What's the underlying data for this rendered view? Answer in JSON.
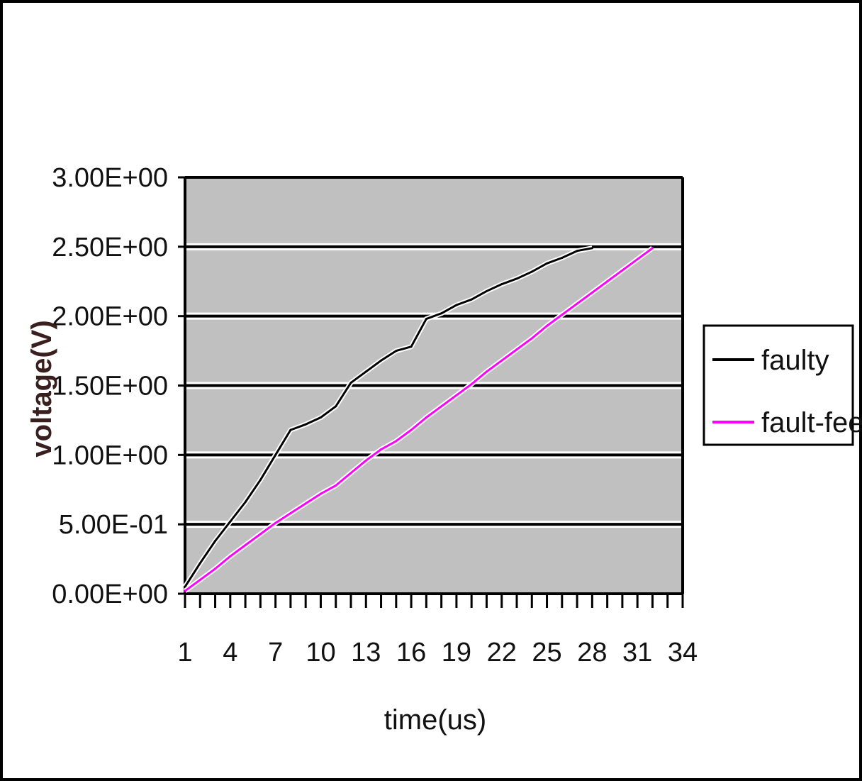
{
  "chart_data": {
    "type": "line",
    "title": "",
    "xlabel": "time(us)",
    "ylabel": "voltage(V)",
    "x": [
      1,
      2,
      3,
      4,
      5,
      6,
      7,
      8,
      9,
      10,
      11,
      12,
      13,
      14,
      15,
      16,
      17,
      18,
      19,
      20,
      21,
      22,
      23,
      24,
      25,
      26,
      27,
      28,
      29,
      30,
      31,
      32
    ],
    "x_ticks": [
      "1",
      "4",
      "7",
      "10",
      "13",
      "16",
      "19",
      "22",
      "25",
      "28",
      "31",
      "34"
    ],
    "x_tick_values": [
      1,
      4,
      7,
      10,
      13,
      16,
      19,
      22,
      25,
      28,
      31,
      34
    ],
    "y_ticks": [
      "0.00E+00",
      "5.00E-01",
      "1.00E+00",
      "1.50E+00",
      "2.00E+00",
      "2.50E+00",
      "3.00E+00"
    ],
    "y_tick_values": [
      0,
      0.5,
      1.0,
      1.5,
      2.0,
      2.5,
      3.0
    ],
    "ylim": [
      0,
      3.0
    ],
    "xlim": [
      1,
      34
    ],
    "grid": true,
    "legend_position": "right",
    "series": [
      {
        "name": "faulty",
        "color": "#000000",
        "x": [
          1,
          2,
          3,
          4,
          5,
          6,
          7,
          8,
          9,
          10,
          11,
          12,
          13,
          14,
          15,
          16,
          17,
          18,
          19,
          20,
          21,
          22,
          23,
          24,
          25,
          26,
          27,
          28
        ],
        "values": [
          0.05,
          0.22,
          0.38,
          0.52,
          0.66,
          0.82,
          1.0,
          1.18,
          1.22,
          1.27,
          1.35,
          1.52,
          1.6,
          1.68,
          1.75,
          1.78,
          1.98,
          2.02,
          2.08,
          2.12,
          2.18,
          2.23,
          2.27,
          2.32,
          2.38,
          2.42,
          2.47,
          2.49
        ]
      },
      {
        "name": "fault-fee",
        "color": "#ff00ff",
        "x": [
          1,
          2,
          3,
          4,
          5,
          6,
          7,
          8,
          9,
          10,
          11,
          12,
          13,
          14,
          15,
          16,
          17,
          18,
          19,
          20,
          21,
          22,
          23,
          24,
          25,
          26,
          27,
          28,
          29,
          30,
          31,
          32
        ],
        "values": [
          0.02,
          0.1,
          0.18,
          0.27,
          0.35,
          0.43,
          0.51,
          0.58,
          0.65,
          0.72,
          0.78,
          0.87,
          0.96,
          1.04,
          1.1,
          1.18,
          1.27,
          1.35,
          1.43,
          1.51,
          1.6,
          1.68,
          1.76,
          1.84,
          1.93,
          2.01,
          2.09,
          2.17,
          2.25,
          2.33,
          2.41,
          2.49
        ]
      }
    ],
    "colors": {
      "plot_background": "#c0c0c0",
      "gridline": "#000000",
      "frame": "#000000"
    }
  }
}
